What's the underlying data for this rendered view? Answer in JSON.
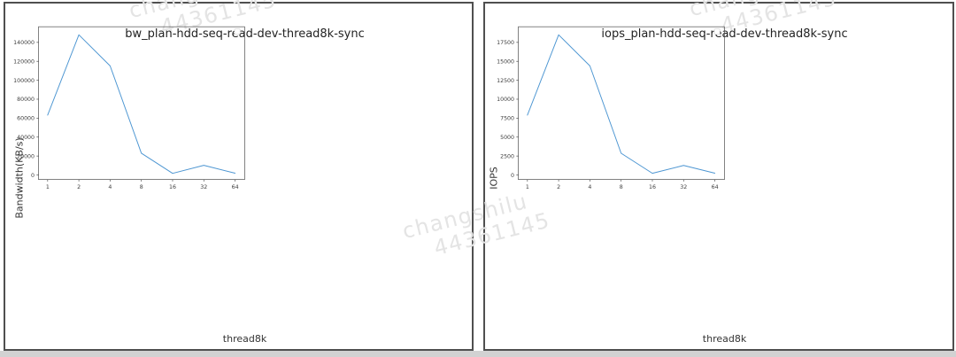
{
  "page": {
    "background_color": "#ffffff",
    "bottom_strip_color": "#d2d2d2",
    "panel_border_color": "#4f4f4f"
  },
  "watermark": {
    "line1": "changshilu",
    "line2": "44361145",
    "color": "#e4e4e4"
  },
  "line_color": "#4d96d2",
  "chart_data": [
    {
      "type": "line",
      "title": "bw_plan-hdd-seq-read-dev-thread8k-sync",
      "xlabel": "thread8k",
      "ylabel": "Bandwidth(KB/s)",
      "categories": [
        "1",
        "2",
        "4",
        "8",
        "16",
        "32",
        "64"
      ],
      "values": [
        63200,
        148000,
        115200,
        23000,
        1700,
        10200,
        1900
      ],
      "yticks": [
        0,
        20000,
        40000,
        60000,
        80000,
        100000,
        120000,
        140000
      ],
      "ylim": [
        0,
        156000
      ],
      "grid": false,
      "legend": {
        "visible": true,
        "entries": [],
        "position": "upper right"
      }
    },
    {
      "type": "line",
      "title": "iops_plan-hdd-seq-read-dev-thread8k-sync",
      "xlabel": "thread8k",
      "ylabel": "IOPS",
      "categories": [
        "1",
        "2",
        "4",
        "8",
        "16",
        "32",
        "64"
      ],
      "values": [
        7900,
        18500,
        14400,
        2870,
        220,
        1260,
        240
      ],
      "yticks": [
        0,
        2500,
        5000,
        7500,
        10000,
        12500,
        15000,
        17500
      ],
      "ylim": [
        0,
        19500
      ],
      "grid": false,
      "legend": {
        "visible": true,
        "entries": [],
        "position": "upper right"
      }
    }
  ]
}
